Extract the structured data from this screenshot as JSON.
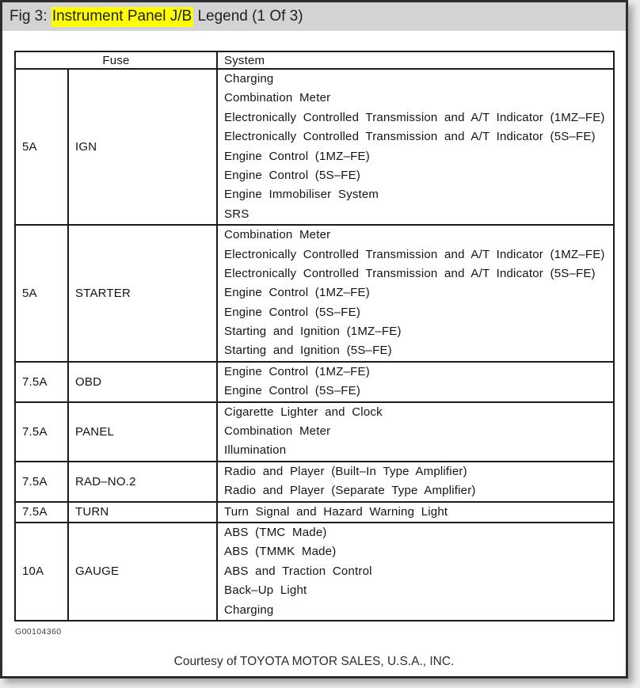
{
  "page": {
    "title": {
      "prefix": "Fig 3: ",
      "highlight": "Instrument Panel J/B",
      "suffix": " Legend (1 Of 3)"
    },
    "figure_code": "G00104360",
    "courtesy": "Courtesy of TOYOTA MOTOR SALES, U.S.A., INC."
  },
  "colors": {
    "title_bar_bg": "#d3d3d3",
    "title_highlight": "#ffff00",
    "page_frame": "#2d2d2d",
    "table_lines": "#1a1a1a"
  },
  "table": {
    "headers": {
      "fuse": "Fuse",
      "system": "System"
    },
    "rows": [
      {
        "amp": "5A",
        "name": "IGN",
        "systems": [
          "Charging",
          "Combination Meter",
          "Electronically Controlled Transmission and A/T Indicator (1MZ–FE)",
          "Electronically Controlled Transmission and A/T Indicator (5S–FE)",
          "Engine Control (1MZ–FE)",
          "Engine Control (5S–FE)",
          "Engine Immobiliser System",
          "SRS"
        ]
      },
      {
        "amp": "5A",
        "name": "STARTER",
        "systems": [
          "Combination Meter",
          "Electronically Controlled Transmission and A/T Indicator (1MZ–FE)",
          "Electronically Controlled Transmission and A/T Indicator (5S–FE)",
          "Engine Control (1MZ–FE)",
          "Engine Control (5S–FE)",
          "Starting and Ignition (1MZ–FE)",
          "Starting and Ignition (5S–FE)"
        ]
      },
      {
        "amp": "7.5A",
        "name": "OBD",
        "systems": [
          "Engine Control (1MZ–FE)",
          "Engine Control (5S–FE)"
        ]
      },
      {
        "amp": "7.5A",
        "name": "PANEL",
        "systems": [
          "Cigarette Lighter and Clock",
          "Combination Meter",
          "Illumination"
        ]
      },
      {
        "amp": "7.5A",
        "name": "RAD–NO.2",
        "systems": [
          "Radio and Player (Built–In Type Amplifier)",
          "Radio and Player (Separate Type Amplifier)"
        ]
      },
      {
        "amp": "7.5A",
        "name": "TURN",
        "systems": [
          "Turn Signal and Hazard Warning Light"
        ]
      },
      {
        "amp": "10A",
        "name": "GAUGE",
        "systems": [
          "ABS (TMC Made)",
          "ABS (TMMK Made)",
          "ABS and Traction Control",
          "Back–Up Light",
          "Charging"
        ]
      }
    ]
  }
}
